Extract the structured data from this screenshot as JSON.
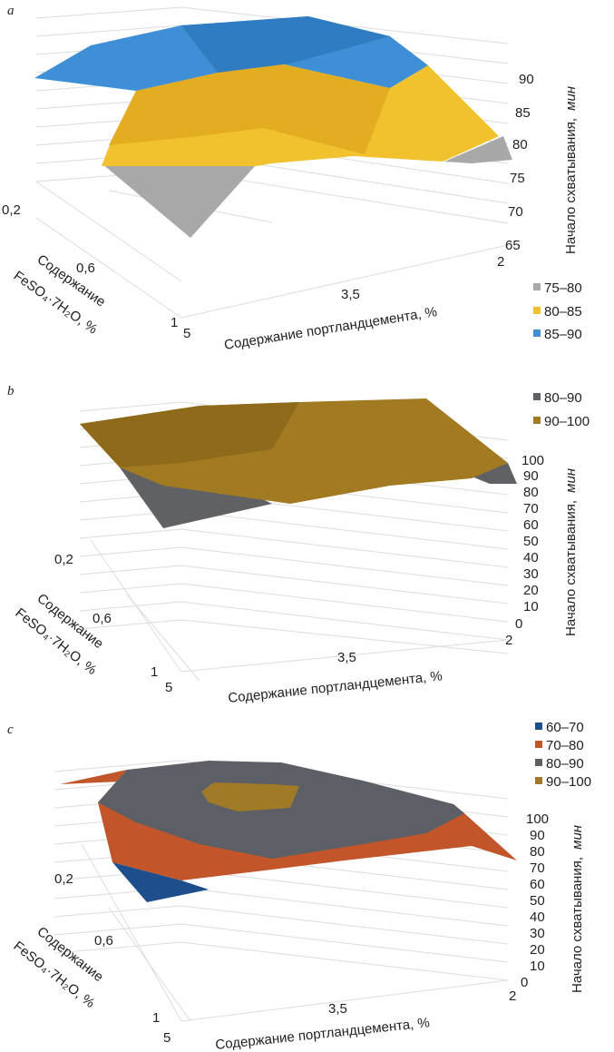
{
  "chart_data": [
    {
      "panel": "a",
      "type": "surface",
      "x_label": "Содержание портландцемента, %",
      "x_ticks": [
        "5",
        "3,5",
        "2"
      ],
      "y_label_line1": "Содержание",
      "y_label_line2": "FeSO₄·7H₂O, %",
      "y_ticks": [
        "1",
        "0,6",
        "0,2"
      ],
      "z_label_main": "Начало схватывания,",
      "z_label_unit": "мин",
      "z_ticks": [
        "65",
        "70",
        "75",
        "80",
        "85",
        "90"
      ],
      "zlim": [
        65,
        90
      ],
      "legend": [
        {
          "label": "75–80",
          "color": "#a8a8a8"
        },
        {
          "label": "80–85",
          "color": "#f2c12e"
        },
        {
          "label": "85–90",
          "color": "#3e8fd6"
        }
      ]
    },
    {
      "panel": "b",
      "type": "surface",
      "x_label": "Содержание портландцемента, %",
      "x_ticks": [
        "5",
        "3,5",
        "2"
      ],
      "y_label_line1": "Содержание",
      "y_label_line2": "FeSO₄·7H₂O, %",
      "y_ticks": [
        "1",
        "0,6",
        "0,2"
      ],
      "z_label_main": "Начало схватывания,",
      "z_label_unit": "мин",
      "z_ticks": [
        "0",
        "10",
        "20",
        "30",
        "40",
        "50",
        "60",
        "70",
        "80",
        "90",
        "100"
      ],
      "zlim": [
        0,
        100
      ],
      "legend": [
        {
          "label": "80–90",
          "color": "#5f6165"
        },
        {
          "label": "90–100",
          "color": "#a27a22"
        }
      ]
    },
    {
      "panel": "c",
      "type": "surface",
      "x_label": "Содержание портландцемента, %",
      "x_ticks": [
        "5",
        "3,5",
        "2"
      ],
      "y_label_line1": "Содержание",
      "y_label_line2": "FeSO₄·7H₂O, %",
      "y_ticks": [
        "1",
        "0,6",
        "0,2"
      ],
      "z_label_main": "Начало схватывания,",
      "z_label_unit": "мин",
      "z_ticks": [
        "0",
        "10",
        "20",
        "30",
        "40",
        "50",
        "60",
        "70",
        "80",
        "90",
        "100"
      ],
      "zlim": [
        0,
        100
      ],
      "legend": [
        {
          "label": "60–70",
          "color": "#1f4e8c"
        },
        {
          "label": "70–80",
          "color": "#c2562a"
        },
        {
          "label": "80–90",
          "color": "#5c6066"
        },
        {
          "label": "90–100",
          "color": "#a07a26"
        }
      ]
    }
  ]
}
